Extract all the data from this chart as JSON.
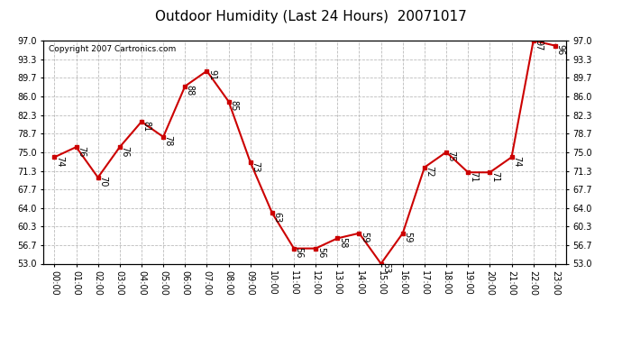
{
  "title": "Outdoor Humidity (Last 24 Hours)  20071017",
  "copyright": "Copyright 2007 Cartronics.com",
  "hours": [
    0,
    1,
    2,
    3,
    4,
    5,
    6,
    7,
    8,
    9,
    10,
    11,
    12,
    13,
    14,
    15,
    16,
    17,
    18,
    19,
    20,
    21,
    22,
    23
  ],
  "values": [
    74,
    76,
    70,
    76,
    81,
    78,
    88,
    91,
    85,
    73,
    63,
    56,
    56,
    58,
    59,
    53,
    59,
    72,
    75,
    71,
    71,
    74,
    97,
    96
  ],
  "hour_labels": [
    "00:00",
    "01:00",
    "02:00",
    "03:00",
    "04:00",
    "05:00",
    "06:00",
    "07:00",
    "08:00",
    "09:00",
    "10:00",
    "11:00",
    "12:00",
    "13:00",
    "14:00",
    "15:00",
    "16:00",
    "17:00",
    "18:00",
    "19:00",
    "20:00",
    "21:00",
    "22:00",
    "23:00"
  ],
  "yticks": [
    53.0,
    56.7,
    60.3,
    64.0,
    67.7,
    71.3,
    75.0,
    78.7,
    82.3,
    86.0,
    89.7,
    93.3,
    97.0
  ],
  "ymin": 53.0,
  "ymax": 97.0,
  "line_color": "#cc0000",
  "marker_color": "#cc0000",
  "bg_color": "#ffffff",
  "grid_color": "#bbbbbb",
  "title_fontsize": 11,
  "label_fontsize": 7,
  "annotation_fontsize": 7,
  "copyright_fontsize": 6.5
}
